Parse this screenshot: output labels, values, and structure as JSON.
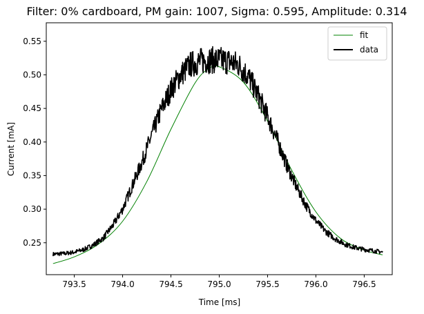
{
  "chart_data": {
    "type": "line",
    "title": "Filter: 0% cardboard, PM gain: 1007, Sigma: 0.595, Amplitude: 0.314",
    "xlabel": "Time [ms]",
    "ylabel": "Current [mA]",
    "xlim": [
      793.21,
      796.79
    ],
    "ylim": [
      0.2025,
      0.5775
    ],
    "xticks": [
      793.5,
      794.0,
      794.5,
      795.0,
      795.5,
      796.0,
      796.5
    ],
    "xtick_labels": [
      "793.5",
      "794.0",
      "794.5",
      "795.0",
      "795.5",
      "796.0",
      "796.5"
    ],
    "yticks": [
      0.25,
      0.3,
      0.35,
      0.4,
      0.45,
      0.5,
      0.55
    ],
    "ytick_labels": [
      "0.25",
      "0.30",
      "0.35",
      "0.40",
      "0.45",
      "0.50",
      "0.55"
    ],
    "grid": false,
    "legend": {
      "position": "top-right"
    },
    "series": [
      {
        "name": "fit",
        "color": "#008000",
        "x": [
          793.28,
          793.5,
          793.75,
          794.0,
          794.25,
          794.5,
          794.75,
          794.9,
          795.0,
          795.25,
          795.5,
          795.75,
          796.0,
          796.25,
          796.5,
          796.69
        ],
        "y": [
          0.219,
          0.229,
          0.248,
          0.282,
          0.341,
          0.419,
          0.488,
          0.51,
          0.512,
          0.489,
          0.431,
          0.358,
          0.296,
          0.257,
          0.239,
          0.232
        ]
      },
      {
        "name": "data",
        "color": "#000000",
        "x": [
          793.28,
          793.4,
          793.5,
          793.6,
          793.7,
          793.8,
          793.9,
          794.0,
          794.1,
          794.2,
          794.3,
          794.4,
          794.5,
          794.6,
          794.7,
          794.8,
          794.9,
          795.0,
          795.1,
          795.2,
          795.3,
          795.4,
          795.5,
          795.6,
          795.7,
          795.8,
          795.9,
          796.0,
          796.1,
          796.2,
          796.3,
          796.4,
          796.5,
          796.6,
          796.69
        ],
        "y": [
          0.233,
          0.234,
          0.236,
          0.24,
          0.247,
          0.257,
          0.276,
          0.3,
          0.335,
          0.37,
          0.41,
          0.448,
          0.478,
          0.5,
          0.515,
          0.52,
          0.522,
          0.522,
          0.52,
          0.515,
          0.498,
          0.47,
          0.438,
          0.403,
          0.365,
          0.333,
          0.305,
          0.283,
          0.267,
          0.256,
          0.248,
          0.243,
          0.24,
          0.238,
          0.236
        ]
      }
    ]
  }
}
